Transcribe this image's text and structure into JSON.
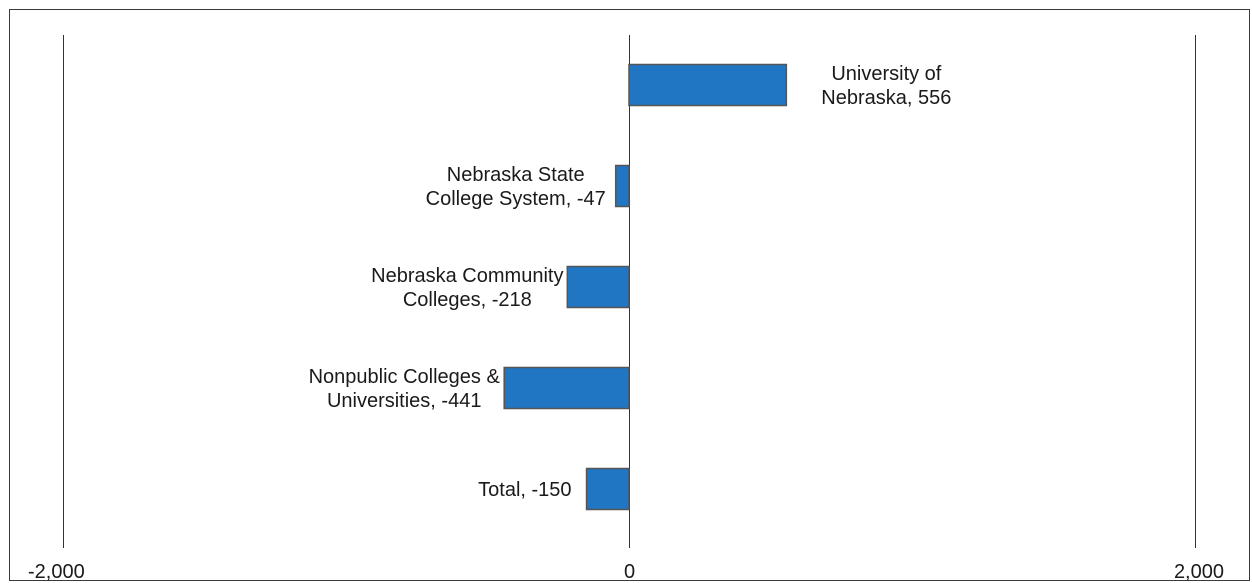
{
  "chart_data": {
    "type": "bar",
    "orientation": "horizontal",
    "categories": [
      "University of Nebraska",
      "Nebraska State College System",
      "Nebraska Community Colleges",
      "Nonpublic Colleges & Universities",
      "Total"
    ],
    "values": [
      556,
      -47,
      -218,
      -441,
      -150
    ],
    "data_labels": [
      [
        "University of",
        "Nebraska, 556"
      ],
      [
        "Nebraska State",
        "College System, -47"
      ],
      [
        "Nebraska Community",
        "Colleges, -218"
      ],
      [
        "Nonpublic Colleges &",
        "Universities, -441"
      ],
      [
        "Total, -150"
      ]
    ],
    "xlim": [
      -2000,
      2000
    ],
    "x_ticks": [
      -2000,
      0,
      2000
    ],
    "x_tick_labels": [
      "-2,000",
      "0",
      "2,000"
    ],
    "title": "",
    "xlabel": "",
    "ylabel": "",
    "grid": "vertical lines at ticks",
    "legend": "none",
    "bar_color": "#2176C4",
    "bar_edge_color": "#555555"
  }
}
